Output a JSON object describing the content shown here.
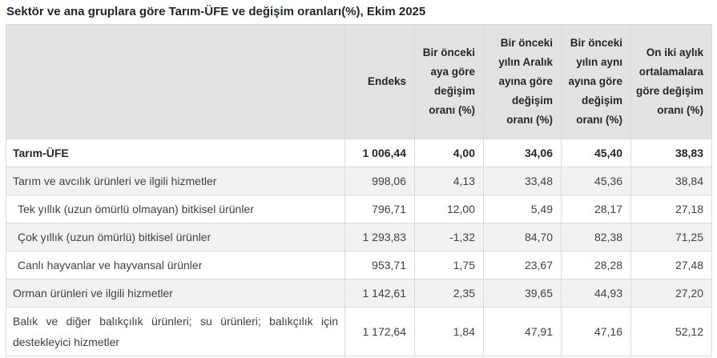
{
  "chart_data": {
    "type": "table",
    "title": "Sektör ve ana gruplara göre Tarım-ÜFE ve değişim oranları(%), Ekim 2025",
    "columns": [
      "",
      "Endeks",
      "Bir önceki aya göre değişim oranı (%)",
      "Bir önceki yılın Aralık ayına göre değişim oranı (%)",
      "Bir önceki yılın aynı ayına göre değişim oranı (%)",
      "On iki aylık ortalamalara göre değişim oranı (%)"
    ],
    "rows": [
      {
        "label": "Tarım-ÜFE",
        "bold": true,
        "indent": false,
        "shaded": false,
        "justify": false,
        "values": [
          "1 006,44",
          "4,00",
          "34,06",
          "45,40",
          "38,83"
        ]
      },
      {
        "label": "Tarım ve avcılık ürünleri ve ilgili hizmetler",
        "bold": false,
        "indent": false,
        "shaded": true,
        "justify": false,
        "values": [
          "998,06",
          "4,13",
          "33,48",
          "45,36",
          "38,84"
        ]
      },
      {
        "label": "Tek yıllık (uzun ömürlü olmayan) bitkisel ürünler",
        "bold": false,
        "indent": true,
        "shaded": false,
        "justify": false,
        "values": [
          "796,71",
          "12,00",
          "5,49",
          "28,17",
          "27,18"
        ]
      },
      {
        "label": "Çok yıllık (uzun ömürlü) bitkisel ürünler",
        "bold": false,
        "indent": true,
        "shaded": true,
        "justify": false,
        "values": [
          "1 293,83",
          "-1,32",
          "84,70",
          "82,38",
          "71,25"
        ]
      },
      {
        "label": "Canlı hayvanlar ve hayvansal ürünler",
        "bold": false,
        "indent": true,
        "shaded": false,
        "justify": false,
        "values": [
          "953,71",
          "1,75",
          "23,67",
          "28,28",
          "27,48"
        ]
      },
      {
        "label": "Orman ürünleri ve ilgili hizmetler",
        "bold": false,
        "indent": false,
        "shaded": true,
        "justify": false,
        "values": [
          "1 142,61",
          "2,35",
          "39,65",
          "44,93",
          "27,20"
        ]
      },
      {
        "label": "Balık ve diğer balıkçılık ürünleri; su ürünleri; balıkçılık için destekleyici hizmetler",
        "bold": false,
        "indent": false,
        "shaded": false,
        "justify": true,
        "values": [
          "1 172,64",
          "1,84",
          "47,91",
          "47,16",
          "52,12"
        ]
      }
    ]
  },
  "colors": {
    "header_bg": "#e3e3e3",
    "band_bg": "#f2f2f2",
    "border": "#d9d9d9",
    "text": "#404040",
    "title_text": "#1f2430"
  }
}
